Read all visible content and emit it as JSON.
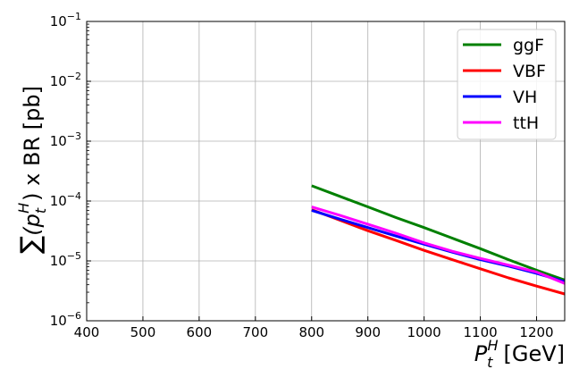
{
  "chart_data": {
    "type": "line",
    "xlabel_main": "P",
    "xlabel_sub": "t",
    "xlabel_sup": "H",
    "xlabel_unit": "[GeV]",
    "ylabel_sum": "∑",
    "ylabel_open": "(p",
    "ylabel_sub": "t",
    "ylabel_sup": "H",
    "ylabel_rest": ") x BR [pb]",
    "xlim": [
      400,
      1250
    ],
    "ylim": [
      1e-06,
      0.1
    ],
    "yscale": "log",
    "grid": true,
    "legend_position": "top-right",
    "x_ticks": [
      {
        "value": 400,
        "label": "400"
      },
      {
        "value": 500,
        "label": "500"
      },
      {
        "value": 600,
        "label": "600"
      },
      {
        "value": 700,
        "label": "700"
      },
      {
        "value": 800,
        "label": "800"
      },
      {
        "value": 900,
        "label": "900"
      },
      {
        "value": 1000,
        "label": "1000"
      },
      {
        "value": 1100,
        "label": "1100"
      },
      {
        "value": 1200,
        "label": "1200"
      }
    ],
    "y_ticks": [
      {
        "value": 1e-06,
        "base": "10",
        "exp": "−6"
      },
      {
        "value": 1e-05,
        "base": "10",
        "exp": "−5"
      },
      {
        "value": 0.0001,
        "base": "10",
        "exp": "−4"
      },
      {
        "value": 0.001,
        "base": "10",
        "exp": "−3"
      },
      {
        "value": 0.01,
        "base": "10",
        "exp": "−2"
      },
      {
        "value": 0.1,
        "base": "10",
        "exp": "−1"
      }
    ],
    "series": [
      {
        "name": "ggF",
        "color": "#008000",
        "x": [
          800,
          850,
          900,
          950,
          1000,
          1050,
          1100,
          1150,
          1200,
          1250
        ],
        "y": [
          0.00018,
          0.00012,
          8e-05,
          5.3e-05,
          3.6e-05,
          2.4e-05,
          1.6e-05,
          1.05e-05,
          7e-06,
          4.8e-06
        ]
      },
      {
        "name": "VBF",
        "color": "#ff0000",
        "x": [
          800,
          850,
          900,
          950,
          1000,
          1050,
          1100,
          1150,
          1200,
          1250
        ],
        "y": [
          7.2e-05,
          4.8e-05,
          3.2e-05,
          2.2e-05,
          1.5e-05,
          1.05e-05,
          7.4e-06,
          5.2e-06,
          3.8e-06,
          2.8e-06
        ]
      },
      {
        "name": "VH",
        "color": "#0000ff",
        "x": [
          800,
          850,
          900,
          950,
          1000,
          1050,
          1100,
          1150,
          1200,
          1250
        ],
        "y": [
          7e-05,
          5e-05,
          3.6e-05,
          2.6e-05,
          1.9e-05,
          1.4e-05,
          1.05e-05,
          8.2e-06,
          6.2e-06,
          4.5e-06
        ]
      },
      {
        "name": "ttH",
        "color": "#ff00ff",
        "x": [
          800,
          850,
          900,
          950,
          1000,
          1050,
          1100,
          1150,
          1200,
          1250
        ],
        "y": [
          8e-05,
          5.8e-05,
          4.1e-05,
          2.9e-05,
          2e-05,
          1.45e-05,
          1.1e-05,
          8.5e-06,
          6.5e-06,
          4.2e-06
        ]
      }
    ]
  }
}
